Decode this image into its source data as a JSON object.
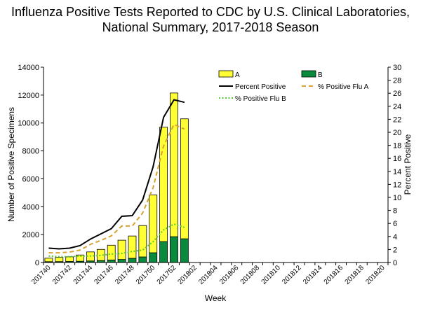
{
  "chart_data": {
    "type": "bar",
    "title": "Influenza Positive Tests Reported to CDC by U.S. Clinical Laboratories,",
    "subtitle": "National Summary, 2017-2018 Season",
    "xlabel": "Week",
    "ylabel": "Number of Positive Specimens",
    "y2label": "Percent Positive",
    "ylim": [
      0,
      14000
    ],
    "y2lim": [
      0,
      30
    ],
    "y_ticks": [
      "0",
      "2000",
      "4000",
      "6000",
      "8000",
      "10000",
      "12000",
      "14000"
    ],
    "y2_ticks": [
      "0",
      "2",
      "4",
      "6",
      "8",
      "10",
      "12",
      "14",
      "16",
      "18",
      "20",
      "22",
      "24",
      "26",
      "28",
      "30"
    ],
    "x_tick_labels": [
      "201740",
      "201742",
      "201744",
      "201746",
      "201748",
      "201750",
      "201752",
      "201802",
      "201804",
      "201806",
      "201808",
      "201810",
      "201812",
      "201814",
      "201816",
      "201818",
      "201820"
    ],
    "week_count": 33,
    "bars": {
      "stacked": true,
      "series": [
        {
          "name": "B",
          "color": "#0a8a3c",
          "values": [
            60,
            65,
            75,
            90,
            110,
            140,
            180,
            220,
            300,
            400,
            700,
            1500,
            1850,
            1700
          ]
        },
        {
          "name": "A",
          "color": "#ffff33",
          "values": [
            250,
            300,
            330,
            450,
            650,
            800,
            1060,
            1380,
            1600,
            2250,
            4150,
            8200,
            10300,
            8600
          ]
        }
      ]
    },
    "lines": [
      {
        "name": "Percent Positive",
        "color": "#000000",
        "dash": "solid",
        "values": [
          2.2,
          2.1,
          2.2,
          2.6,
          3.6,
          4.4,
          5.2,
          7.1,
          7.2,
          9.6,
          14.7,
          22.3,
          25.0,
          24.6
        ]
      },
      {
        "name": "% Positive Flu A",
        "color": "#d8a232",
        "dash": "dashed",
        "values": [
          1.5,
          1.5,
          1.6,
          1.9,
          2.8,
          3.4,
          4.1,
          5.6,
          5.6,
          7.6,
          11.5,
          17.9,
          21.2,
          20.5
        ]
      },
      {
        "name": "% Positive Flu B",
        "color": "#55cc33",
        "dash": "dotted",
        "values": [
          1.0,
          0.9,
          0.9,
          1.0,
          1.0,
          1.1,
          1.3,
          1.4,
          1.7,
          1.9,
          3.2,
          5.0,
          5.9,
          5.4
        ]
      }
    ],
    "legend": {
      "position": "top-right",
      "items": [
        {
          "label": "A",
          "kind": "box",
          "color": "#ffff33"
        },
        {
          "label": "B",
          "kind": "box",
          "color": "#0a8a3c"
        },
        {
          "label": "Percent Positive",
          "kind": "line",
          "color": "#000000",
          "dash": "solid"
        },
        {
          "label": "% Positive Flu A",
          "kind": "line",
          "color": "#d8a232",
          "dash": "dashed"
        },
        {
          "label": "% Positive Flu B",
          "kind": "line",
          "color": "#55cc33",
          "dash": "dotted"
        }
      ]
    },
    "grid": false
  }
}
